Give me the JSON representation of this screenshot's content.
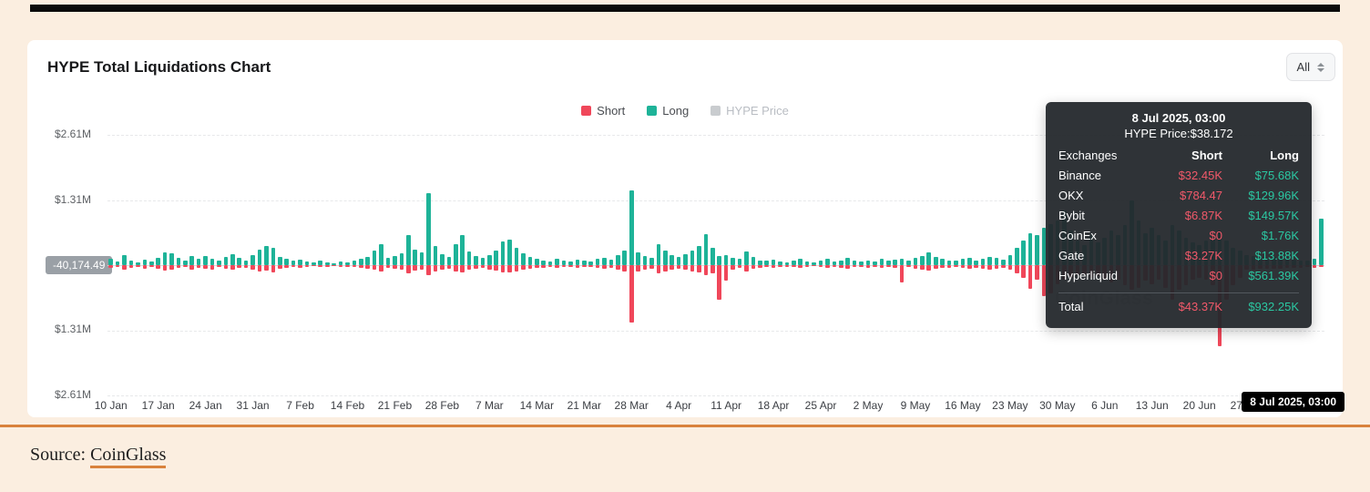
{
  "page": {
    "title": "HYPE Total Liquidations Chart",
    "range_selector": "All",
    "source_label": "Source:",
    "source_link": "CoinGlass",
    "watermark": "CoinGlass"
  },
  "legend": [
    {
      "label": "Short",
      "color": "#f0475a",
      "active": true
    },
    {
      "label": "Long",
      "color": "#1eb398",
      "active": true
    },
    {
      "label": "HYPE Price",
      "color": "#c9cccf",
      "active": false
    }
  ],
  "y_axis": {
    "labels": [
      "$2.61M",
      "$1.31M",
      "$1.31M",
      "$2.61M"
    ],
    "zero_badge": "-40,174.49"
  },
  "x_axis": {
    "end_badge": "8 Jul 2025, 03:00"
  },
  "tooltip": {
    "title": "8 Jul 2025, 03:00",
    "subtitle": "HYPE Price:$38.172",
    "columns": [
      "Exchanges",
      "Short",
      "Long"
    ],
    "rows": [
      {
        "name": "Binance",
        "short": "$32.45K",
        "long": "$75.68K"
      },
      {
        "name": "OKX",
        "short": "$784.47",
        "long": "$129.96K"
      },
      {
        "name": "Bybit",
        "short": "$6.87K",
        "long": "$149.57K"
      },
      {
        "name": "CoinEx",
        "short": "$0",
        "long": "$1.76K"
      },
      {
        "name": "Gate",
        "short": "$3.27K",
        "long": "$13.88K"
      },
      {
        "name": "Hyperliquid",
        "short": "$0",
        "long": "$561.39K"
      }
    ],
    "total": {
      "name": "Total",
      "short": "$43.37K",
      "long": "$932.25K"
    }
  },
  "chart_data": {
    "type": "bar",
    "title": "HYPE Total Liquidations Chart",
    "start_date": "2025-01-10",
    "end_date": "2025-07-08",
    "interval": "daily",
    "unit": "USD thousands (estimated from pixels)",
    "ylim_millions": [
      -2.61,
      2.61
    ],
    "gridlines_millions": [
      1.31,
      2.61
    ],
    "legend_position": "top-center",
    "x_tick_labels": [
      "10 Jan",
      "17 Jan",
      "24 Jan",
      "31 Jan",
      "7 Feb",
      "14 Feb",
      "21 Feb",
      "28 Feb",
      "7 Mar",
      "14 Mar",
      "21 Mar",
      "28 Mar",
      "4 Apr",
      "11 Apr",
      "18 Apr",
      "25 Apr",
      "2 May",
      "9 May",
      "16 May",
      "23 May",
      "30 May",
      "6 Jun",
      "13 Jun",
      "20 Jun",
      "27 Jun"
    ],
    "series": [
      {
        "name": "Long",
        "color": "#1eb398",
        "direction": "up",
        "values_k": [
          120,
          80,
          200,
          90,
          60,
          110,
          70,
          150,
          260,
          230,
          140,
          90,
          180,
          120,
          180,
          130,
          90,
          160,
          220,
          140,
          100,
          200,
          320,
          380,
          340,
          160,
          120,
          90,
          110,
          70,
          50,
          90,
          60,
          40,
          80,
          60,
          90,
          120,
          160,
          300,
          430,
          150,
          180,
          240,
          600,
          320,
          260,
          1450,
          380,
          220,
          160,
          420,
          610,
          280,
          180,
          140,
          200,
          300,
          480,
          520,
          340,
          240,
          160,
          130,
          100,
          80,
          120,
          90,
          70,
          110,
          90,
          70,
          120,
          150,
          110,
          200,
          300,
          1500,
          260,
          180,
          140,
          420,
          300,
          200,
          160,
          220,
          300,
          380,
          620,
          340,
          180,
          200,
          150,
          120,
          280,
          160,
          100,
          90,
          110,
          80,
          60,
          90,
          120,
          70,
          50,
          90,
          120,
          80,
          100,
          140,
          90,
          70,
          100,
          80,
          120,
          90,
          110,
          130,
          90,
          140,
          180,
          260,
          160,
          120,
          100,
          90,
          120,
          150,
          100,
          130,
          170,
          140,
          110,
          200,
          350,
          500,
          650,
          600,
          750,
          820,
          900,
          1100,
          700,
          500,
          400,
          600,
          450,
          550,
          700,
          600,
          800,
          1300,
          900,
          650,
          750,
          600,
          500,
          800,
          700,
          550,
          450,
          400,
          500,
          600,
          700,
          500,
          350,
          300,
          200,
          180,
          150,
          130,
          160,
          140,
          120,
          110,
          100,
          90,
          120,
          932
        ]
      },
      {
        "name": "Short",
        "color": "#f0475a",
        "direction": "down",
        "values_k": [
          60,
          40,
          90,
          50,
          30,
          70,
          45,
          80,
          110,
          90,
          60,
          40,
          85,
          55,
          70,
          90,
          45,
          80,
          100,
          60,
          50,
          90,
          130,
          110,
          140,
          70,
          50,
          40,
          50,
          35,
          25,
          45,
          30,
          20,
          40,
          30,
          45,
          60,
          70,
          90,
          120,
          60,
          80,
          100,
          160,
          110,
          90,
          210,
          130,
          90,
          70,
          130,
          150,
          100,
          80,
          60,
          85,
          110,
          140,
          150,
          120,
          90,
          70,
          60,
          50,
          35,
          55,
          40,
          30,
          50,
          45,
          35,
          60,
          70,
          55,
          90,
          120,
          1150,
          120,
          90,
          70,
          160,
          130,
          100,
          80,
          100,
          120,
          150,
          200,
          160,
          700,
          320,
          90,
          60,
          130,
          80,
          50,
          45,
          55,
          40,
          30,
          45,
          60,
          35,
          25,
          45,
          60,
          40,
          50,
          70,
          45,
          35,
          50,
          40,
          60,
          45,
          55,
          350,
          45,
          70,
          90,
          110,
          80,
          60,
          50,
          45,
          60,
          75,
          50,
          65,
          85,
          70,
          55,
          100,
          170,
          250,
          480,
          300,
          620,
          560,
          380,
          300,
          250,
          200,
          180,
          260,
          220,
          280,
          350,
          300,
          400,
          500,
          450,
          320,
          380,
          300,
          450,
          700,
          500,
          400,
          300,
          250,
          300,
          400,
          1630,
          700,
          400,
          250,
          100,
          90,
          75,
          65,
          80,
          70,
          60,
          55,
          50,
          45,
          60,
          43
        ]
      }
    ],
    "hovered_point": {
      "date_label": "8 Jul 2025, 03:00",
      "hype_price": 38.172,
      "total_short_k": 43.37,
      "total_long_k": 932.25
    }
  }
}
